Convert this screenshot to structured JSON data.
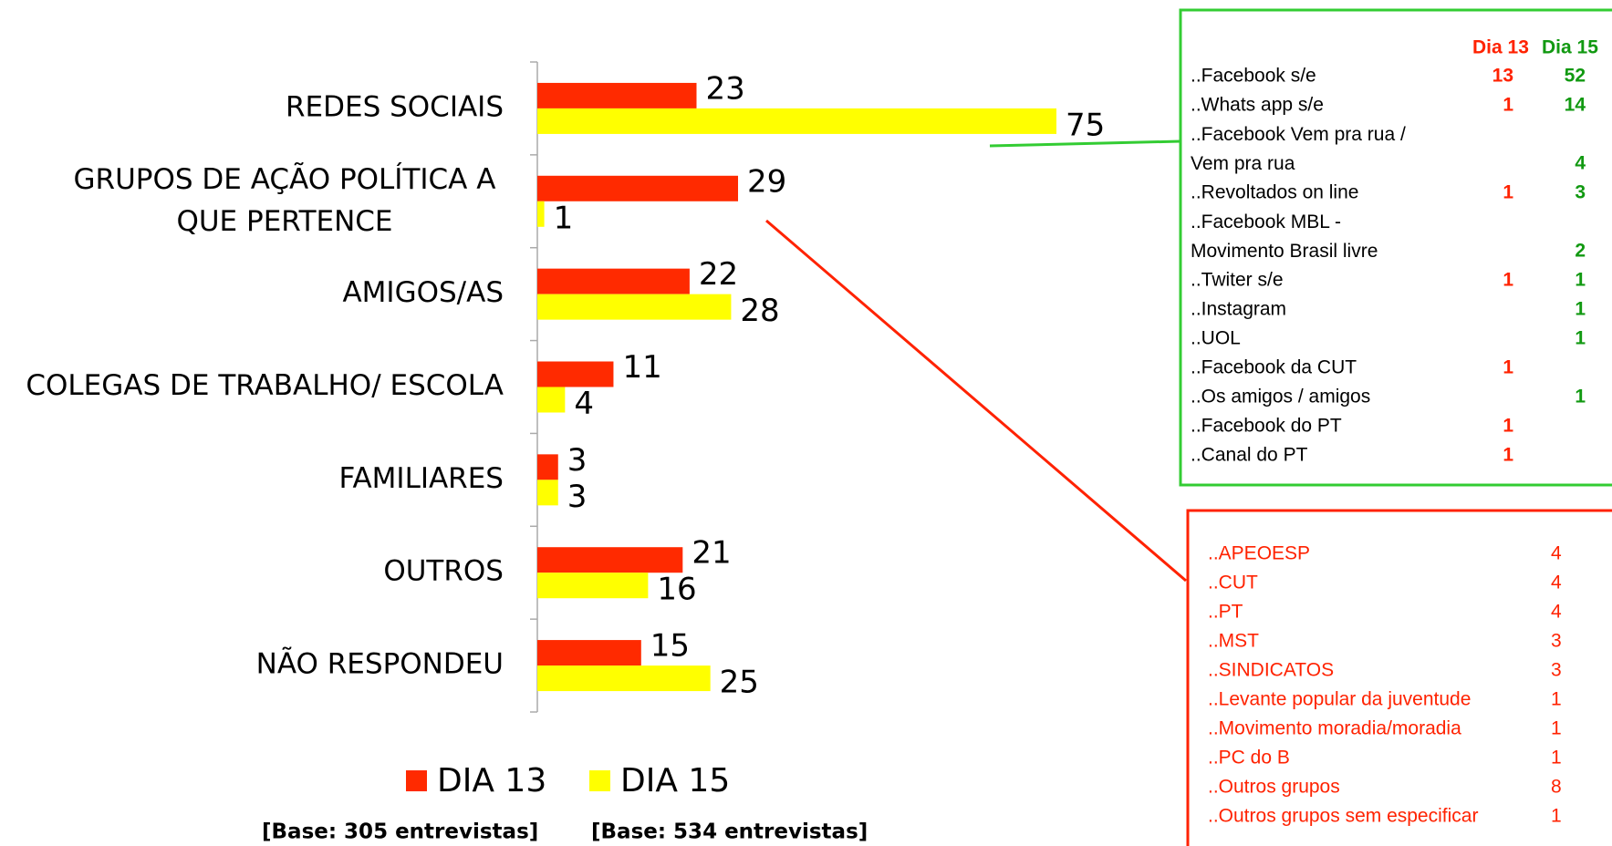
{
  "chart_data": {
    "type": "bar",
    "orientation": "horizontal",
    "categories": [
      "REDES SOCIAIS",
      "GRUPOS DE AÇÃO POLÍTICA A\nQUE PERTENCE",
      "AMIGOS/AS",
      "COLEGAS DE TRABALHO/ ESCOLA",
      "FAMILIARES",
      "OUTROS",
      "NÃO RESPONDEU"
    ],
    "series": [
      {
        "name": "DIA 13",
        "color": "#ff2a00",
        "values": [
          23,
          29,
          22,
          11,
          3,
          21,
          15
        ]
      },
      {
        "name": "DIA 15",
        "color": "#ffff00",
        "values": [
          75,
          1,
          28,
          4,
          3,
          16,
          25
        ]
      }
    ],
    "xlim": [
      0,
      75
    ],
    "notes": [
      "[Base: 305 entrevistas]",
      "[Base: 534 entrevistas]"
    ]
  },
  "green_table": {
    "header": [
      "Dia 13",
      "Dia 15"
    ],
    "rows": [
      {
        "label": "..Facebook s/e",
        "dia13": 13,
        "dia15": 52
      },
      {
        "label": "..Whats app s/e",
        "dia13": 1,
        "dia15": 14
      },
      {
        "label": "..Facebook Vem pra rua /\nVem pra rua",
        "dia13": null,
        "dia15": 4
      },
      {
        "label": "..Revoltados on line",
        "dia13": 1,
        "dia15": 3
      },
      {
        "label": "..Facebook MBL -\nMovimento Brasil livre",
        "dia13": null,
        "dia15": 2
      },
      {
        "label": "..Twiter s/e",
        "dia13": 1,
        "dia15": 1
      },
      {
        "label": "..Instagram",
        "dia13": null,
        "dia15": 1
      },
      {
        "label": "..UOL",
        "dia13": null,
        "dia15": 1
      },
      {
        "label": "..Facebook da CUT",
        "dia13": 1,
        "dia15": null
      },
      {
        "label": "..Os amigos / amigos",
        "dia13": null,
        "dia15": 1
      },
      {
        "label": "..Facebook do PT",
        "dia13": 1,
        "dia15": null
      },
      {
        "label": "..Canal do PT",
        "dia13": 1,
        "dia15": null
      }
    ]
  },
  "red_table": {
    "rows": [
      {
        "label": "..APEOESP",
        "value": 4
      },
      {
        "label": "..CUT",
        "value": 4
      },
      {
        "label": "..PT",
        "value": 4
      },
      {
        "label": "..MST",
        "value": 3
      },
      {
        "label": "..SINDICATOS",
        "value": 3
      },
      {
        "label": "..Levante popular da juventude",
        "value": 1
      },
      {
        "label": "..Movimento moradia/moradia",
        "value": 1
      },
      {
        "label": "..PC do B",
        "value": 1
      },
      {
        "label": "..Outros grupos",
        "value": 8
      },
      {
        "label": "..Outros grupos sem especificar",
        "value": 1
      }
    ]
  }
}
